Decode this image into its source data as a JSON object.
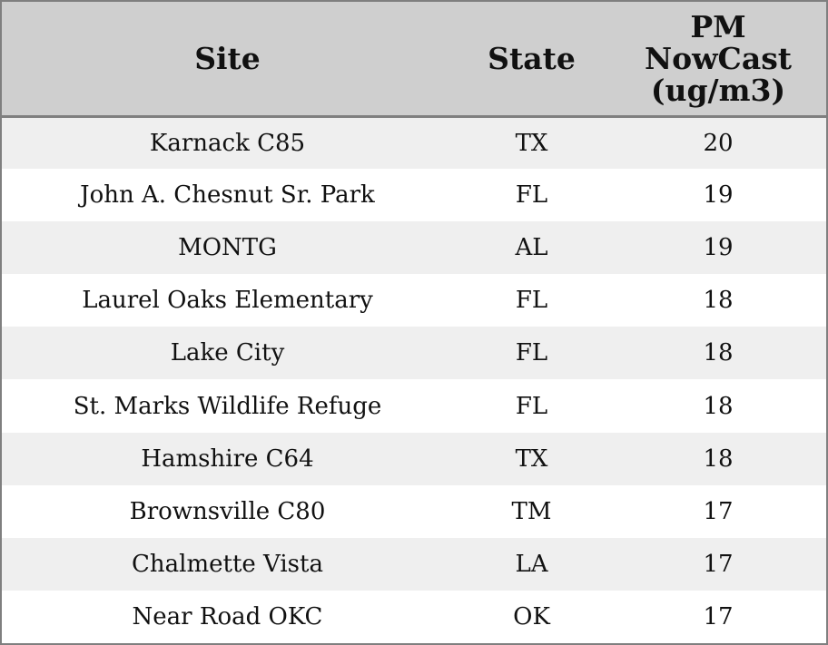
{
  "chart_data": {
    "type": "table",
    "columns": [
      "Site",
      "State",
      "PM NowCast (ug/m3)"
    ],
    "header_lines": {
      "site": [
        "Site"
      ],
      "state": [
        "State"
      ],
      "pm": [
        "PM",
        "NowCast",
        "(ug/m3)"
      ]
    },
    "rows": [
      {
        "site": "Karnack C85",
        "state": "TX",
        "pm": 20
      },
      {
        "site": "John A. Chesnut Sr. Park",
        "state": "FL",
        "pm": 19
      },
      {
        "site": "MONTG",
        "state": "AL",
        "pm": 19
      },
      {
        "site": "Laurel Oaks Elementary",
        "state": "FL",
        "pm": 18
      },
      {
        "site": "Lake City",
        "state": "FL",
        "pm": 18
      },
      {
        "site": "St. Marks Wildlife Refuge",
        "state": "FL",
        "pm": 18
      },
      {
        "site": "Hamshire C64",
        "state": "TX",
        "pm": 18
      },
      {
        "site": "Brownsville C80",
        "state": "TM",
        "pm": 17
      },
      {
        "site": "Chalmette Vista",
        "state": "LA",
        "pm": 17
      },
      {
        "site": "Near Road OKC",
        "state": "OK",
        "pm": 17
      }
    ],
    "colors": {
      "header_bg": "#cfcfcf",
      "row_alt_bg": "#efefef",
      "row_bg": "#ffffff",
      "border": "#7f7f7f"
    }
  }
}
